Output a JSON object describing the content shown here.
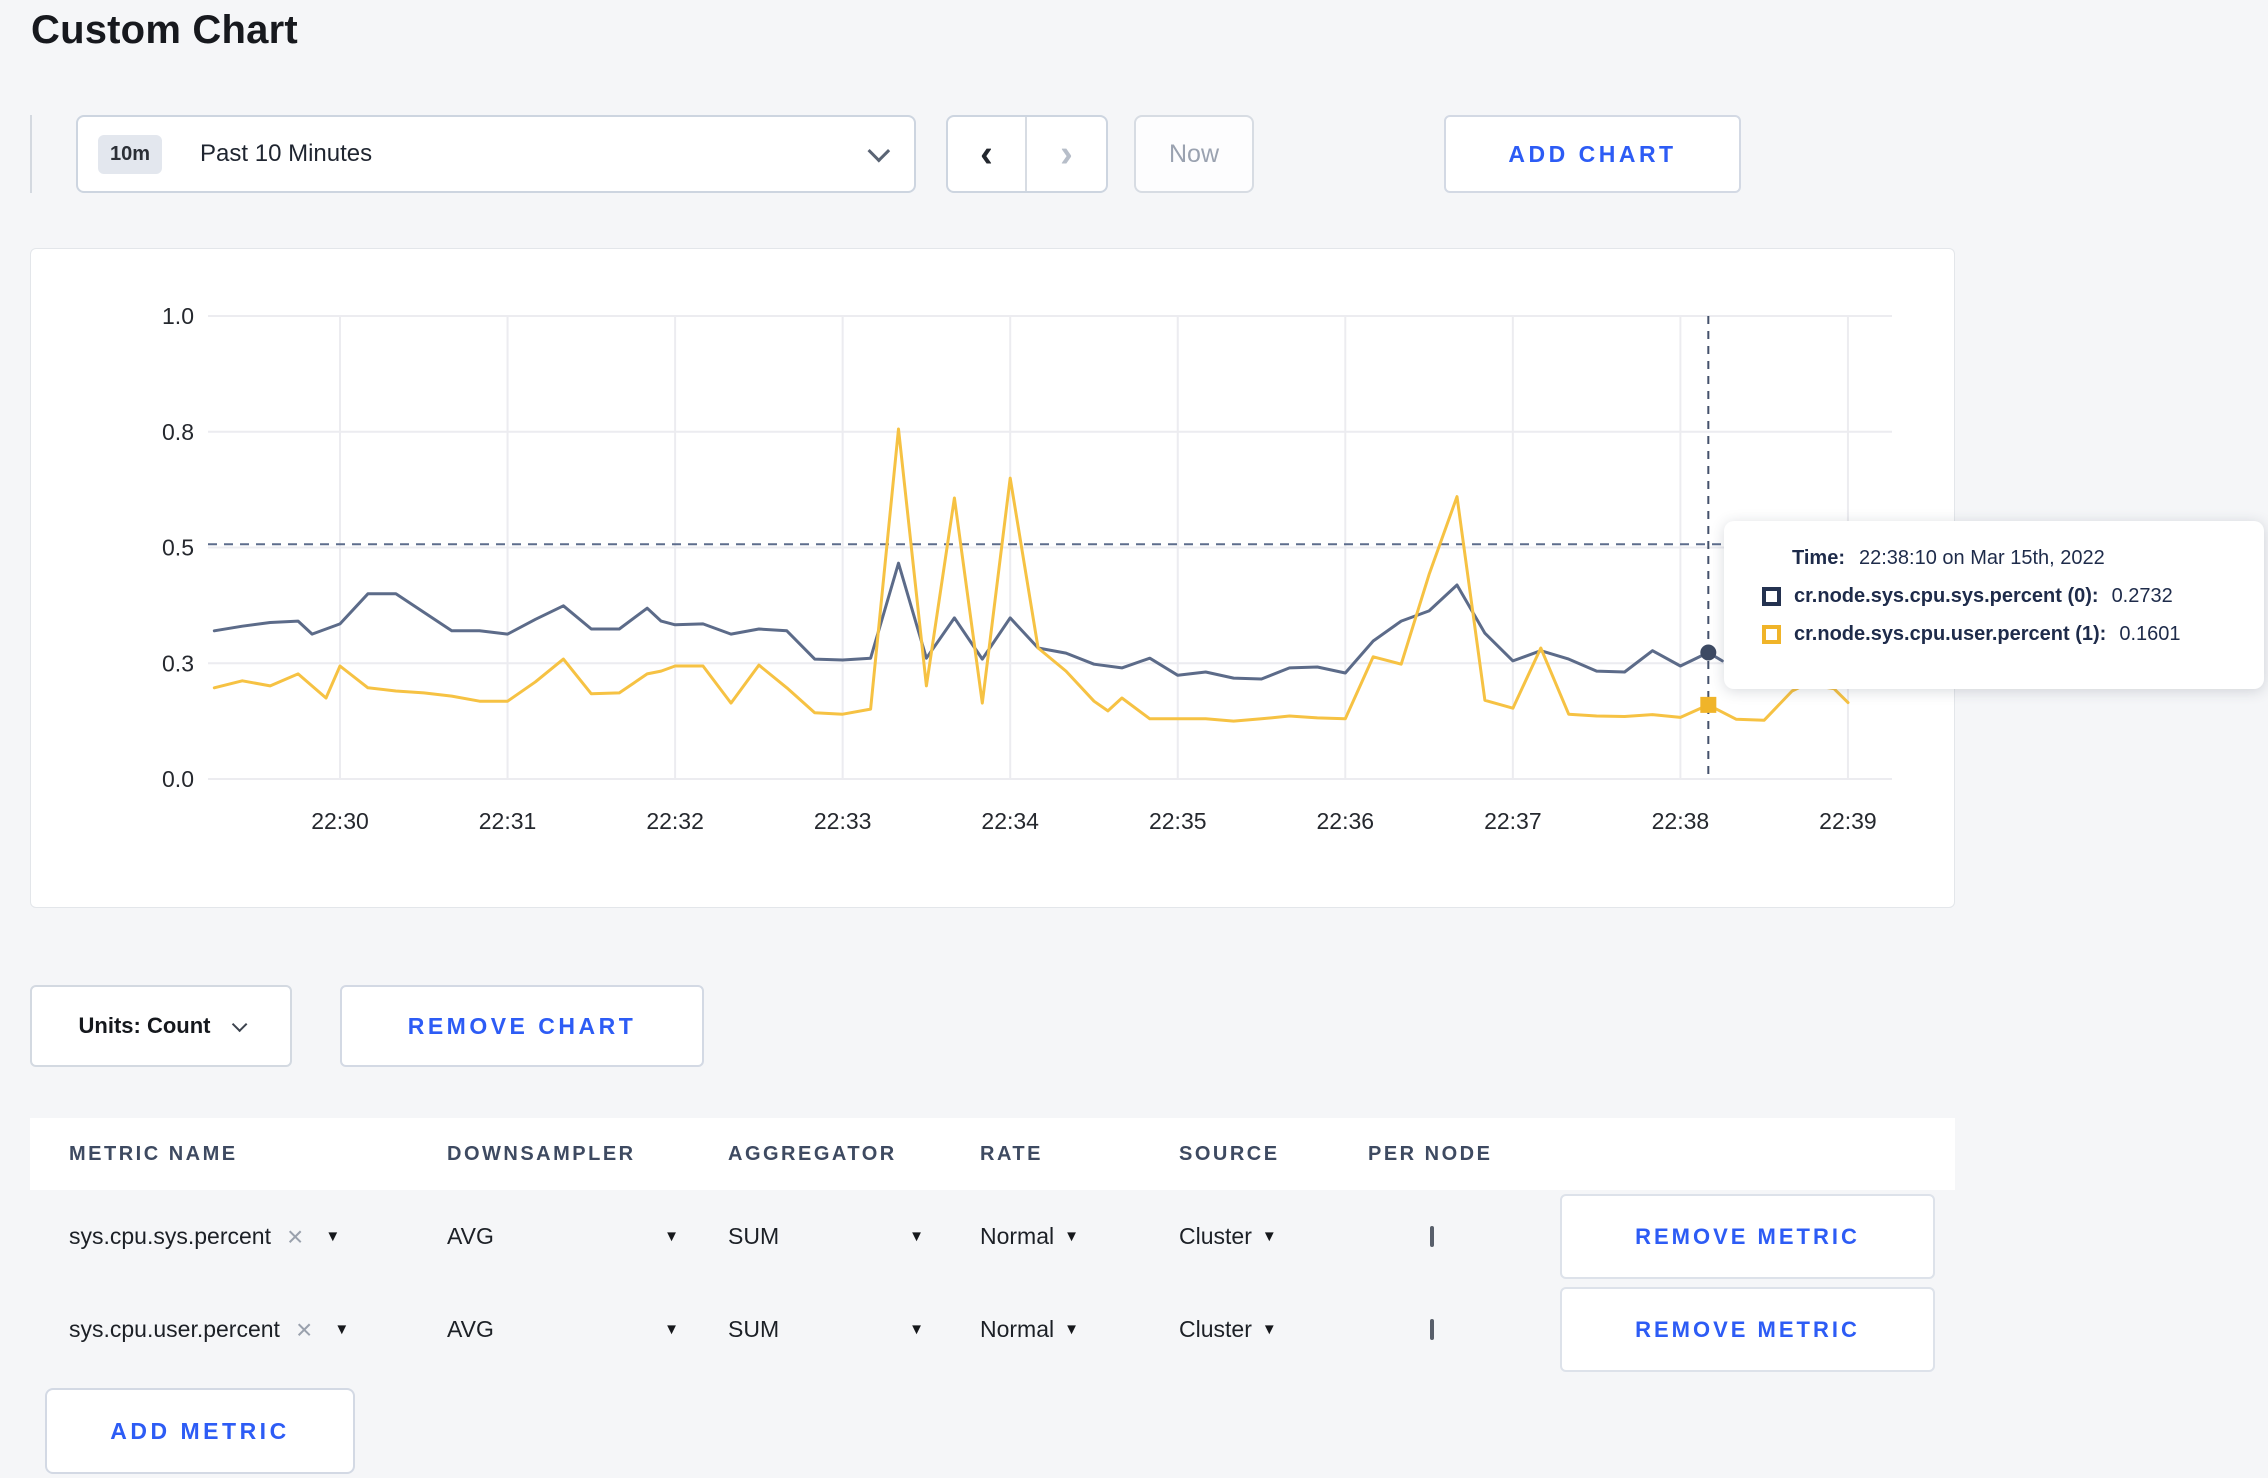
{
  "page": {
    "title": "Custom Chart"
  },
  "toolbar": {
    "time_range": {
      "badge": "10m",
      "label": "Past 10 Minutes"
    },
    "prev_label": "‹",
    "next_label": "›",
    "now_label": "Now",
    "add_chart_label": "ADD CHART"
  },
  "chart_data": {
    "type": "line",
    "title": "",
    "xlabel": "",
    "ylabel": "",
    "ylim": [
      0,
      1
    ],
    "grid": true,
    "x_ticks": [
      "22:30",
      "22:31",
      "22:32",
      "22:33",
      "22:34",
      "22:35",
      "22:36",
      "22:37",
      "22:38",
      "22:39"
    ],
    "y_ticks": [
      {
        "v": 0.0,
        "label": "0.0"
      },
      {
        "v": 0.25,
        "label": "0.3"
      },
      {
        "v": 0.5,
        "label": "0.5"
      },
      {
        "v": 0.75,
        "label": "0.8"
      },
      {
        "v": 1.0,
        "label": "1.0"
      }
    ],
    "dashed_guideline_value": 0.507,
    "crosshair": {
      "t_seconds_from_2230": 490,
      "time": "22:38:10",
      "sys_value": 0.2732,
      "user_value": 0.1601
    },
    "series": [
      {
        "name": "cr.node.sys.cpu.sys.percent",
        "color": "#5c6b89",
        "points": [
          [
            -45,
            0.32
          ],
          [
            -35,
            0.33
          ],
          [
            -25,
            0.338
          ],
          [
            -15,
            0.341
          ],
          [
            -10,
            0.313
          ],
          [
            0,
            0.335
          ],
          [
            10,
            0.4
          ],
          [
            20,
            0.4
          ],
          [
            30,
            0.36
          ],
          [
            40,
            0.32
          ],
          [
            50,
            0.32
          ],
          [
            60,
            0.313
          ],
          [
            70,
            0.345
          ],
          [
            80,
            0.374
          ],
          [
            90,
            0.324
          ],
          [
            100,
            0.324
          ],
          [
            110,
            0.369
          ],
          [
            115,
            0.341
          ],
          [
            120,
            0.333
          ],
          [
            130,
            0.335
          ],
          [
            140,
            0.313
          ],
          [
            150,
            0.324
          ],
          [
            160,
            0.32
          ],
          [
            170,
            0.259
          ],
          [
            180,
            0.257
          ],
          [
            190,
            0.261
          ],
          [
            200,
            0.466
          ],
          [
            210,
            0.261
          ],
          [
            220,
            0.348
          ],
          [
            230,
            0.259
          ],
          [
            240,
            0.348
          ],
          [
            250,
            0.283
          ],
          [
            260,
            0.272
          ],
          [
            270,
            0.248
          ],
          [
            280,
            0.24
          ],
          [
            290,
            0.261
          ],
          [
            300,
            0.224
          ],
          [
            310,
            0.231
          ],
          [
            320,
            0.218
          ],
          [
            330,
            0.216
          ],
          [
            340,
            0.24
          ],
          [
            350,
            0.242
          ],
          [
            360,
            0.229
          ],
          [
            370,
            0.298
          ],
          [
            380,
            0.341
          ],
          [
            390,
            0.363
          ],
          [
            400,
            0.419
          ],
          [
            410,
            0.315
          ],
          [
            420,
            0.255
          ],
          [
            430,
            0.277
          ],
          [
            440,
            0.259
          ],
          [
            450,
            0.233
          ],
          [
            460,
            0.231
          ],
          [
            470,
            0.277
          ],
          [
            480,
            0.244
          ],
          [
            490,
            0.2732
          ],
          [
            495,
            0.255
          ]
        ]
      },
      {
        "name": "cr.node.sys.cpu.user.percent",
        "color": "#f6c243",
        "points": [
          [
            -45,
            0.197
          ],
          [
            -35,
            0.212
          ],
          [
            -25,
            0.201
          ],
          [
            -15,
            0.227
          ],
          [
            -5,
            0.175
          ],
          [
            0,
            0.244
          ],
          [
            10,
            0.197
          ],
          [
            20,
            0.19
          ],
          [
            30,
            0.186
          ],
          [
            40,
            0.179
          ],
          [
            50,
            0.168
          ],
          [
            60,
            0.168
          ],
          [
            70,
            0.21
          ],
          [
            80,
            0.259
          ],
          [
            90,
            0.184
          ],
          [
            100,
            0.186
          ],
          [
            110,
            0.227
          ],
          [
            115,
            0.233
          ],
          [
            120,
            0.244
          ],
          [
            130,
            0.244
          ],
          [
            140,
            0.164
          ],
          [
            150,
            0.246
          ],
          [
            160,
            0.197
          ],
          [
            170,
            0.143
          ],
          [
            180,
            0.14
          ],
          [
            190,
            0.151
          ],
          [
            200,
            0.756
          ],
          [
            210,
            0.201
          ],
          [
            220,
            0.607
          ],
          [
            230,
            0.164
          ],
          [
            240,
            0.65
          ],
          [
            250,
            0.283
          ],
          [
            260,
            0.233
          ],
          [
            270,
            0.168
          ],
          [
            275,
            0.147
          ],
          [
            280,
            0.175
          ],
          [
            290,
            0.13
          ],
          [
            300,
            0.13
          ],
          [
            310,
            0.13
          ],
          [
            320,
            0.125
          ],
          [
            330,
            0.13
          ],
          [
            340,
            0.136
          ],
          [
            350,
            0.132
          ],
          [
            360,
            0.13
          ],
          [
            370,
            0.264
          ],
          [
            380,
            0.248
          ],
          [
            390,
            0.442
          ],
          [
            400,
            0.61
          ],
          [
            410,
            0.17
          ],
          [
            420,
            0.153
          ],
          [
            430,
            0.283
          ],
          [
            440,
            0.14
          ],
          [
            450,
            0.136
          ],
          [
            460,
            0.135
          ],
          [
            470,
            0.139
          ],
          [
            480,
            0.133
          ],
          [
            490,
            0.1601
          ],
          [
            500,
            0.129
          ],
          [
            510,
            0.127
          ],
          [
            520,
            0.19
          ],
          [
            525,
            0.205
          ],
          [
            535,
            0.195
          ],
          [
            540,
            0.165
          ]
        ]
      }
    ]
  },
  "tooltip": {
    "time_label": "Time:",
    "time_value": "22:38:10 on Mar 15th, 2022",
    "rows": [
      {
        "label": "cr.node.sys.cpu.sys.percent (0):",
        "value": "0.2732"
      },
      {
        "label": "cr.node.sys.cpu.user.percent (1):",
        "value": "0.1601"
      }
    ]
  },
  "chart_controls": {
    "units_label": "Units: Count",
    "remove_chart_label": "REMOVE CHART"
  },
  "metrics_table": {
    "headers": [
      "METRIC NAME",
      "DOWNSAMPLER",
      "AGGREGATOR",
      "RATE",
      "SOURCE",
      "PER NODE"
    ],
    "rows": [
      {
        "metric": "sys.cpu.sys.percent",
        "downsampler": "AVG",
        "aggregator": "SUM",
        "rate": "Normal",
        "source": "Cluster",
        "per_node": false,
        "remove_label": "REMOVE METRIC"
      },
      {
        "metric": "sys.cpu.user.percent",
        "downsampler": "AVG",
        "aggregator": "SUM",
        "rate": "Normal",
        "source": "Cluster",
        "per_node": false,
        "remove_label": "REMOVE METRIC"
      }
    ],
    "add_metric_label": "ADD METRIC"
  },
  "colors": {
    "accent_blue": "#2d5cf5",
    "series_sys": "#5c6b89",
    "series_user": "#f6c243",
    "swatch_sys": "#243250",
    "swatch_user": "#f0b429",
    "grid": "#ececf0",
    "page_bg": "#f5f6f8"
  }
}
